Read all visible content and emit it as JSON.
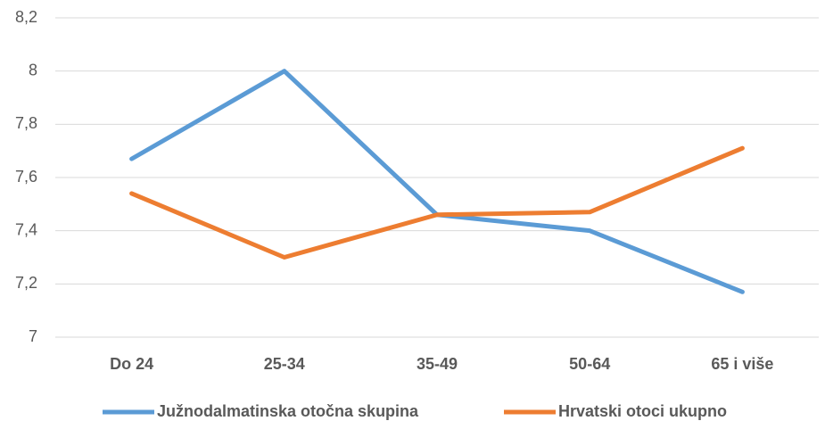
{
  "chart_data": {
    "type": "line",
    "categories": [
      "Do 24",
      "25-34",
      "35-49",
      "50-64",
      "65 i više"
    ],
    "series": [
      {
        "name": "Južnodalmatinska otočna skupina",
        "color": "#5b9bd5",
        "values": [
          7.67,
          8.0,
          7.46,
          7.4,
          7.17
        ]
      },
      {
        "name": "Hrvatski otoci ukupno",
        "color": "#ed7d31",
        "values": [
          7.54,
          7.3,
          7.46,
          7.47,
          7.71
        ]
      }
    ],
    "ylim": [
      7,
      8.2
    ],
    "yticks": [
      7,
      {
        "value": 7.2,
        "label": "7,2"
      },
      {
        "value": 7.4,
        "label": "7,4"
      },
      {
        "value": 7.6,
        "label": "7,6"
      },
      {
        "value": 7.8,
        "label": "7,8"
      },
      8,
      {
        "value": 8.2,
        "label": "8,2"
      }
    ],
    "grid": true,
    "legend": "bottom"
  }
}
